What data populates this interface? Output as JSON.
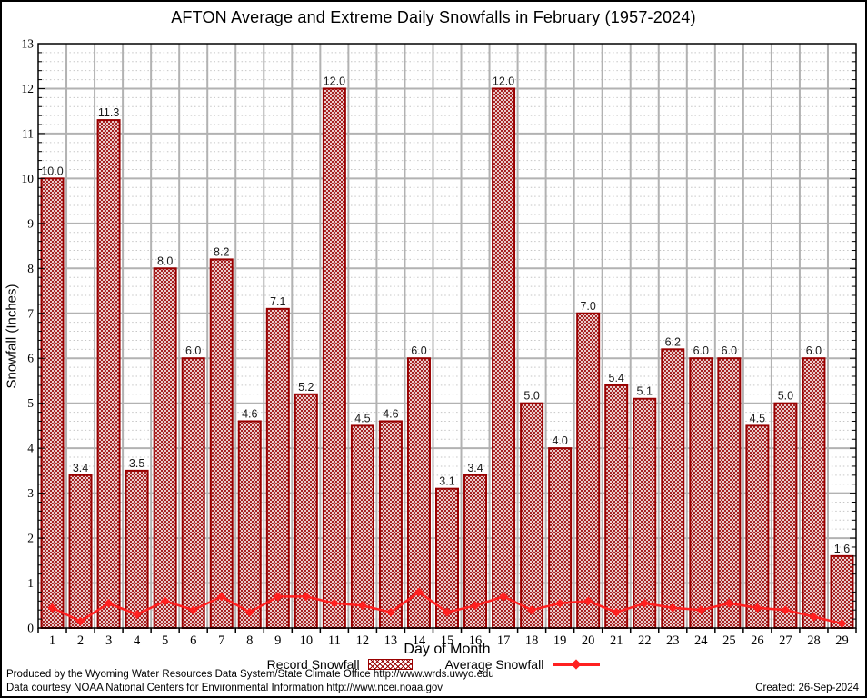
{
  "title": "AFTON Average and Extreme Daily Snowfalls in February (1957-2024)",
  "chart_data": {
    "type": "bar",
    "title": "AFTON Average and Extreme Daily Snowfalls in February (1957-2024)",
    "xlabel": "Day of Month",
    "ylabel": "Snowfall (Inches)",
    "ylim": [
      0,
      13
    ],
    "y_major_step": 1,
    "y_minor_step": 0.2,
    "grid": "on",
    "legend_position": "bottom",
    "categories": [
      1,
      2,
      3,
      4,
      5,
      6,
      7,
      8,
      9,
      10,
      11,
      12,
      13,
      14,
      15,
      16,
      17,
      18,
      19,
      20,
      21,
      22,
      23,
      24,
      25,
      26,
      27,
      28,
      29
    ],
    "series": [
      {
        "name": "Record Snowfall",
        "type": "bar",
        "values": [
          10.0,
          3.4,
          11.3,
          3.5,
          8.0,
          6.0,
          8.2,
          4.6,
          7.1,
          5.2,
          12.0,
          4.5,
          4.6,
          6.0,
          3.1,
          3.4,
          12.0,
          5.0,
          4.0,
          7.0,
          5.4,
          5.1,
          6.2,
          6.0,
          6.0,
          4.5,
          5.0,
          6.0,
          1.6
        ]
      },
      {
        "name": "Average Snowfall",
        "type": "line",
        "values": [
          0.45,
          0.15,
          0.55,
          0.3,
          0.6,
          0.4,
          0.7,
          0.35,
          0.7,
          0.7,
          0.55,
          0.5,
          0.35,
          0.8,
          0.35,
          0.5,
          0.7,
          0.4,
          0.55,
          0.6,
          0.35,
          0.55,
          0.45,
          0.4,
          0.55,
          0.45,
          0.4,
          0.25,
          0.1
        ]
      }
    ],
    "bar_value_labels": [
      "10.0",
      "3.4",
      "11.3",
      "3.5",
      "8.0",
      "6.0",
      "8.2",
      "4.6",
      "7.1",
      "5.2",
      "12.0",
      "4.5",
      "4.6",
      "6.0",
      "3.1",
      "3.4",
      "12.0",
      "5.0",
      "4.0",
      "7.0",
      "5.4",
      "5.1",
      "6.2",
      "6.0",
      "6.0",
      "4.5",
      "5.0",
      "6.0",
      "1.6"
    ]
  },
  "colors": {
    "bar_hatch": "#990000",
    "bar_border": "#990000",
    "average_line": "#ff2020",
    "grid_major": "#b2b2b2",
    "grid_minor": "#c6c6c6",
    "axis": "#000000"
  },
  "axis": {
    "xlabel": "Day of Month",
    "ylabel": "Snowfall (Inches)"
  },
  "legend": {
    "record_label": "Record Snowfall",
    "average_label": "Average Snowfall"
  },
  "footer": {
    "line1": "Produced by the Wyoming Water Resources Data System/State Climate Office http://www.wrds.uwyo.edu",
    "line2": "Data courtesy NOAA National Centers for Environmental Information http://www.ncei.noaa.gov",
    "created": "Created: 26-Sep-2024"
  }
}
